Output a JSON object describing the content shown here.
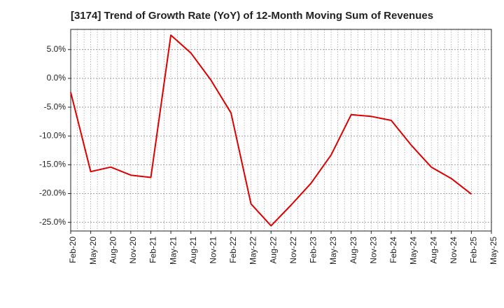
{
  "chart_data": {
    "type": "line",
    "title": "[3174]  Trend of Growth Rate (YoY) of 12-Month Moving Sum of Revenues",
    "xlabel": "",
    "ylabel": "",
    "x_ticks": [
      "Feb-20",
      "May-20",
      "Aug-20",
      "Nov-20",
      "Feb-21",
      "May-21",
      "Aug-21",
      "Nov-21",
      "Feb-22",
      "May-22",
      "Aug-22",
      "Nov-22",
      "Feb-23",
      "May-23",
      "Aug-23",
      "Nov-23",
      "Feb-24",
      "May-24",
      "Aug-24",
      "Nov-24",
      "Feb-25",
      "May-25"
    ],
    "y_ticks": [
      5,
      0,
      -5,
      -10,
      -15,
      -20,
      -25
    ],
    "y_tick_labels": [
      "5.0%",
      "0.0%",
      "-5.0%",
      "-10.0%",
      "-15.0%",
      "-20.0%",
      "-25.0%"
    ],
    "ylim": [
      -26.5,
      8.5
    ],
    "grid": true,
    "grid_style": "dotted",
    "line_color": "#dd0000",
    "series": [
      {
        "x": [
          "Feb-20",
          "May-20",
          "Aug-20",
          "Nov-20",
          "Feb-21",
          "May-21",
          "Aug-21",
          "Nov-21",
          "Feb-22",
          "May-22",
          "Aug-22",
          "Nov-22",
          "Feb-23",
          "May-23",
          "Aug-23",
          "Nov-23",
          "Feb-24",
          "May-24",
          "Aug-24",
          "Nov-24",
          "Feb-25"
        ],
        "values": [
          -2.4,
          -16.2,
          -15.4,
          -16.8,
          -17.2,
          7.5,
          4.4,
          -0.3,
          -6.0,
          -21.8,
          -25.6,
          -22.0,
          -18.2,
          -13.3,
          -6.3,
          -6.6,
          -7.3,
          -11.6,
          -15.4,
          -17.4,
          -20.1
        ]
      }
    ]
  }
}
